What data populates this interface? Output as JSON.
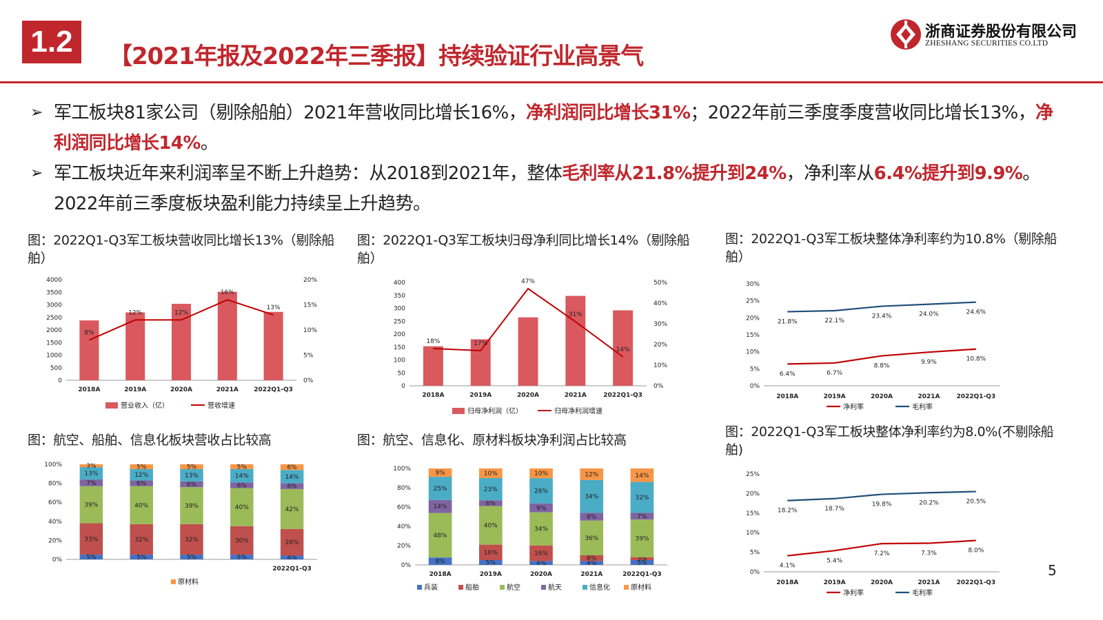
{
  "header": {
    "section_number": "1.2",
    "title": "【2021年报及2022年三季报】持续验证行业高景气",
    "logo_cn": "浙商证券股份有限公司",
    "logo_en": "ZHESHANG SECURITIES CO.LTD",
    "accent_color": "#c0272d"
  },
  "bullets": [
    [
      {
        "t": "军工板块81家公司（剔除船舶）2021年营收同比增长16%，",
        "hl": false
      },
      {
        "t": "净利润同比增长31%",
        "hl": true
      },
      {
        "t": "；2022年前三季度季度营收同比增长13%，",
        "hl": false
      },
      {
        "t": "净利润同比增长14%",
        "hl": true
      },
      {
        "t": "。",
        "hl": false
      }
    ],
    [
      {
        "t": "军工板块近年来利润率呈不断上升趋势：从2018到2021年，整体",
        "hl": false
      },
      {
        "t": "毛利率从21.8%提升到24%",
        "hl": true
      },
      {
        "t": "，净利率从",
        "hl": false
      },
      {
        "t": "6.4%提升到9.9%",
        "hl": true
      },
      {
        "t": "。2022年前三季度板块盈利能力持续呈上升趋势。",
        "hl": false
      }
    ]
  ],
  "captions": {
    "c1": "图：2022Q1-Q3军工板块营收同比增长13%（剔除船舶）",
    "c2": "图：2022Q1-Q3军工板块归母净利同比增长14%（剔除船舶）",
    "c3": "图：2022Q1-Q3军工板块整体净利率约为10.8%（剔除船舶）",
    "c4": "图：航空、船舶、信息化板块营收占比较高",
    "c5": "图：航空、信息化、原材料板块净利润占比较高",
    "c6": "图：2022Q1-Q3军工板块整体净利率约为8.0%(不剔除船舶)"
  },
  "page_number": "5",
  "chart_data": [
    {
      "type": "bar",
      "categories": [
        "2018A",
        "2019A",
        "2020A",
        "2021A",
        "2022Q1-Q3"
      ],
      "series": [
        {
          "name": "营业收入（亿）",
          "type": "bar",
          "axis": "left",
          "values": [
            2380,
            2700,
            3040,
            3520,
            2720
          ],
          "color": "#d9595f"
        },
        {
          "name": "营收增速",
          "type": "line",
          "axis": "right",
          "values": [
            8,
            12,
            12,
            16,
            13
          ],
          "labels": [
            "8%",
            "12%",
            "12%",
            "16%",
            "13%"
          ],
          "color": "#c00000"
        }
      ],
      "yticks_left": [
        "0",
        "500",
        "1000",
        "1500",
        "2000",
        "2500",
        "3000",
        "3500",
        "4000"
      ],
      "yticks_right": [
        "0%",
        "5%",
        "10%",
        "15%",
        "20%"
      ],
      "ylim_left": [
        0,
        4000
      ],
      "ylim_right": [
        0,
        20
      ],
      "legend": "bottom"
    },
    {
      "type": "bar",
      "categories": [
        "2018A",
        "2019A",
        "2020A",
        "2021A",
        "2022Q1-Q3"
      ],
      "series": [
        {
          "name": "归母净利润（亿）",
          "type": "bar",
          "axis": "left",
          "values": [
            153,
            180,
            265,
            348,
            292
          ],
          "color": "#d9595f"
        },
        {
          "name": "归母净利润增速",
          "type": "line",
          "axis": "right",
          "values": [
            18,
            17,
            47,
            31,
            14
          ],
          "labels": [
            "18%",
            "17%",
            "47%",
            "31%",
            "14%"
          ],
          "color": "#c00000"
        }
      ],
      "yticks_left": [
        "0",
        "50",
        "100",
        "150",
        "200",
        "250",
        "300",
        "350",
        "400"
      ],
      "yticks_right": [
        "0%",
        "10%",
        "20%",
        "30%",
        "40%",
        "50%"
      ],
      "ylim_left": [
        0,
        400
      ],
      "ylim_right": [
        0,
        50
      ],
      "legend": "bottom"
    },
    {
      "type": "line",
      "categories": [
        "2018A",
        "2019A",
        "2020A",
        "2021A",
        "2022Q1-Q3"
      ],
      "series": [
        {
          "name": "净利率",
          "values": [
            6.4,
            6.7,
            8.8,
            9.9,
            10.8
          ],
          "labels": [
            "6.4%",
            "6.7%",
            "8.8%",
            "9.9%",
            "10.8%"
          ],
          "color": "#c00000"
        },
        {
          "name": "毛利率",
          "values": [
            21.8,
            22.1,
            23.4,
            24.0,
            24.6
          ],
          "labels": [
            "21.8%",
            "22.1%",
            "23.4%",
            "24.0%",
            "24.6%"
          ],
          "color": "#1f4e79"
        }
      ],
      "yticks": [
        "0%",
        "5%",
        "10%",
        "15%",
        "20%",
        "25%",
        "30%"
      ],
      "ylim": [
        0,
        30
      ],
      "legend": "bottom"
    },
    {
      "type": "bar",
      "stacked": true,
      "categories": [
        "",
        "",
        "",
        "",
        "2022Q1-Q3"
      ],
      "series": [
        {
          "name": "兵装",
          "values": [
            5,
            5,
            5,
            5,
            4
          ],
          "labels": [
            "5%",
            "5%",
            "5%",
            "5%",
            "4%"
          ],
          "color": "#4472c4"
        },
        {
          "name": "船舶",
          "values": [
            33,
            32,
            32,
            30,
            28
          ],
          "labels": [
            "33%",
            "32%",
            "32%",
            "30%",
            "28%"
          ],
          "color": "#c0504d"
        },
        {
          "name": "航空",
          "values": [
            39,
            40,
            39,
            40,
            42
          ],
          "labels": [
            "39%",
            "40%",
            "39%",
            "40%",
            "42%"
          ],
          "color": "#9bbb59"
        },
        {
          "name": "航天",
          "values": [
            7,
            6,
            6,
            6,
            6
          ],
          "labels": [
            "7%",
            "6%",
            "6%",
            "6%",
            "6%"
          ],
          "color": "#8064a2"
        },
        {
          "name": "信息化",
          "values": [
            13,
            12,
            13,
            14,
            14
          ],
          "labels": [
            "13%",
            "12%",
            "13%",
            "14%",
            "14%"
          ],
          "color": "#4bacc6"
        },
        {
          "name": "原材料",
          "values": [
            3,
            5,
            5,
            5,
            6
          ],
          "labels": [
            "3%",
            "5%",
            "5%",
            "5%",
            "6%"
          ],
          "color": "#f79646"
        }
      ],
      "yticks": [
        "0%",
        "20%",
        "40%",
        "60%",
        "80%",
        "100%"
      ],
      "ylim": [
        0,
        100
      ],
      "legend_visible": [
        "原材料"
      ],
      "legend": "bottom"
    },
    {
      "type": "bar",
      "stacked": true,
      "categories": [
        "2018A",
        "2019A",
        "2020A",
        "2021A",
        "2022Q1-Q3"
      ],
      "series": [
        {
          "name": "兵装",
          "values": [
            8,
            5,
            4,
            4,
            5
          ],
          "labels": [
            "8%",
            "5%",
            "4%",
            "4%",
            "5%"
          ],
          "color": "#4472c4"
        },
        {
          "name": "船舶",
          "values": [
            0,
            16,
            16,
            6,
            3
          ],
          "labels": [
            "",
            "16%",
            "16%",
            "6%",
            "3%"
          ],
          "color": "#c0504d"
        },
        {
          "name": "航空",
          "values": [
            48,
            40,
            34,
            36,
            39
          ],
          "labels": [
            "48%",
            "40%",
            "34%",
            "36%",
            "39%"
          ],
          "color": "#9bbb59"
        },
        {
          "name": "航天",
          "values": [
            14,
            6,
            9,
            8,
            7
          ],
          "labels": [
            "14%",
            "6%",
            "9%",
            "8%",
            "7%"
          ],
          "color": "#8064a2"
        },
        {
          "name": "信息化",
          "values": [
            25,
            23,
            26,
            34,
            32
          ],
          "labels": [
            "25%",
            "23%",
            "26%",
            "34%",
            "32%"
          ],
          "color": "#4bacc6"
        },
        {
          "name": "原材料",
          "values": [
            9,
            10,
            10,
            12,
            14
          ],
          "labels": [
            "9%",
            "10%",
            "10%",
            "12%",
            "14%"
          ],
          "color": "#f79646"
        }
      ],
      "yticks": [
        "0%",
        "20%",
        "40%",
        "60%",
        "80%",
        "100%"
      ],
      "ylim": [
        0,
        100
      ],
      "legend": "bottom"
    },
    {
      "type": "line",
      "categories": [
        "2018A",
        "2019A",
        "2020A",
        "2021A",
        "2022Q1-Q3"
      ],
      "series": [
        {
          "name": "净利率",
          "values": [
            4.1,
            5.4,
            7.2,
            7.3,
            8.0
          ],
          "labels": [
            "4.1%",
            "5.4%",
            "7.2%",
            "7.3%",
            "8.0%"
          ],
          "color": "#c00000"
        },
        {
          "name": "毛利率",
          "values": [
            18.2,
            18.7,
            19.8,
            20.2,
            20.5
          ],
          "labels": [
            "18.2%",
            "18.7%",
            "19.8%",
            "20.2%",
            "20.5%"
          ],
          "color": "#1f4e79"
        }
      ],
      "yticks": [
        "0%",
        "5%",
        "10%",
        "15%",
        "20%",
        "25%"
      ],
      "ylim": [
        0,
        25
      ],
      "legend": "bottom"
    }
  ]
}
